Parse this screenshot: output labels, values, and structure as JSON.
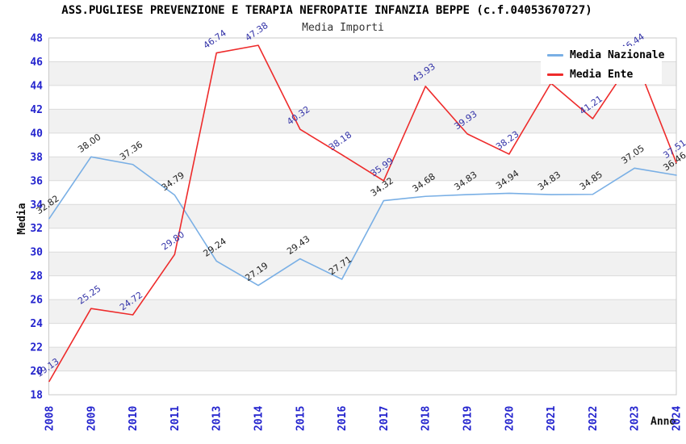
{
  "header": {
    "title": "ASS.PUGLIESE PREVENZIONE E TERAPIA NEFROPATIE INFANZIA BEPPE (c.f.04053670727)",
    "subtitle": "Media Importi"
  },
  "chart_data": {
    "type": "line",
    "title": "ASS.PUGLIESE PREVENZIONE E TERAPIA NEFROPATIE INFANZIA BEPPE (c.f.04053670727)",
    "subtitle": "Media Importi",
    "xlabel": "Anno",
    "ylabel": "Media",
    "ylim": [
      18,
      48
    ],
    "ytick_step": 2,
    "grid": "horizontal gridlines with alternating light-gray bands",
    "legend_position": "top-right",
    "categories": [
      "2008",
      "2009",
      "2010",
      "2011",
      "2013",
      "2014",
      "2015",
      "2016",
      "2017",
      "2018",
      "2019",
      "2020",
      "2021",
      "2022",
      "2023",
      "2024"
    ],
    "series": [
      {
        "name": "Media Nazionale",
        "color": "#79AFE5",
        "label_color": "#1F1F1F",
        "values": [
          32.82,
          38.0,
          37.36,
          34.79,
          29.24,
          27.19,
          29.43,
          27.71,
          34.32,
          34.68,
          34.83,
          34.94,
          34.83,
          34.85,
          37.05,
          36.46
        ]
      },
      {
        "name": "Media Ente",
        "color": "#EE2B2B",
        "label_color": "#3434A8",
        "values": [
          19.13,
          25.25,
          24.72,
          29.8,
          46.74,
          47.38,
          40.32,
          38.18,
          35.99,
          43.93,
          39.93,
          38.23,
          44.2,
          41.21,
          46.44,
          37.51
        ],
        "hidden_label_indexes": [
          12
        ],
        "note": "2021 point label is hidden behind the legend box; its value is estimated from the line vertex"
      }
    ],
    "colors": {
      "tick_labels": "#2424CE",
      "band_fill": "#F1F1F1",
      "gridline": "#DBDBDB",
      "plot_border": "#C9C9C9"
    }
  }
}
